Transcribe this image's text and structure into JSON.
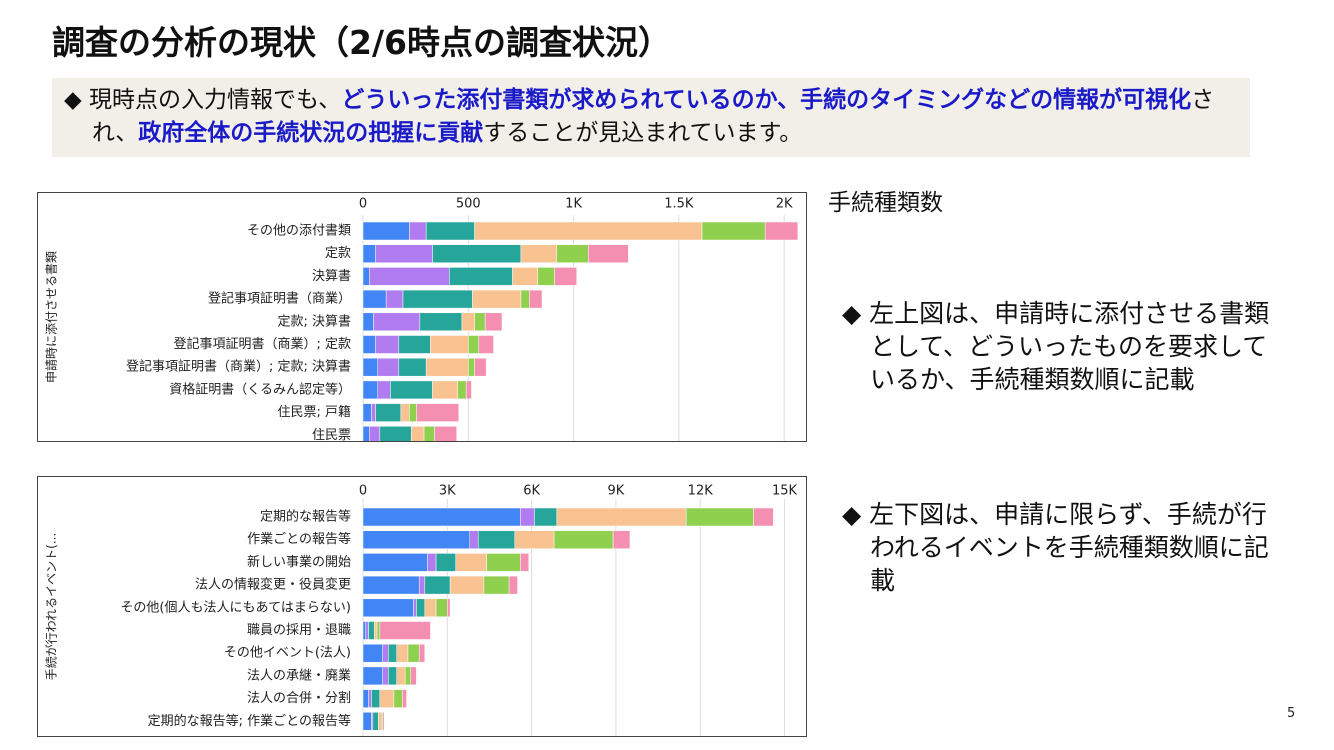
{
  "slide": {
    "title": "調査の分析の現状（2/6時点の調査状況）",
    "summary": [
      {
        "text": "◆ 現時点の入力情報でも、",
        "emphasis": false
      },
      {
        "text": "どういった添付書類が求められているのか、手続のタイミングなどの情報が可視化",
        "emphasis": true
      },
      {
        "text": "され、",
        "emphasis": false
      },
      {
        "text": "政府全体の手続状況の把握に貢献",
        "emphasis": true
      },
      {
        "text": "することが見込まれています。",
        "emphasis": false
      }
    ],
    "count_label": "手続種類数",
    "bullets": [
      "◆ 左上図は、申請時に添付させる書類として、どういったものを要求しているか、手続種類数順に記載",
      "◆ 左下図は、申請に限らず、手続が行われるイベントを手続種類数順に記載"
    ],
    "page_number": "5"
  },
  "chart_data": [
    {
      "type": "stacked-barh",
      "y_label": "申請時に添付させる書類",
      "categories": [
        "その他の添付書類",
        "定款",
        "決算書",
        "登記事項証明書（商業）",
        "定款; 決算書",
        "登記事項証明書（商業）; 定款",
        "登記事項証明書（商業）; 定款; 決算書",
        "資格証明書（くるみん認定等）",
        "住民票; 戸籍",
        "住民票"
      ],
      "series": [
        {
          "color": "#4285f4",
          "values": [
            220,
            60,
            30,
            110,
            50,
            60,
            70,
            70,
            40,
            30
          ]
        },
        {
          "color": "#b07cf0",
          "values": [
            80,
            270,
            380,
            80,
            220,
            110,
            100,
            60,
            20,
            50
          ]
        },
        {
          "color": "#26a69a",
          "values": [
            230,
            420,
            300,
            330,
            200,
            150,
            130,
            200,
            120,
            150
          ]
        },
        {
          "color": "#f8c291",
          "values": [
            1080,
            170,
            120,
            230,
            60,
            180,
            200,
            120,
            40,
            60
          ]
        },
        {
          "color": "#8fd14f",
          "values": [
            300,
            150,
            80,
            40,
            50,
            50,
            30,
            40,
            35,
            50
          ]
        },
        {
          "color": "#f48fb1",
          "values": [
            155,
            190,
            105,
            60,
            80,
            70,
            55,
            25,
            200,
            105
          ]
        }
      ],
      "xlim": [
        0,
        2080
      ],
      "xticks": [
        0,
        500,
        {
          "value": 1000,
          "label": "1K"
        },
        {
          "value": 1500,
          "label": "1.5K"
        },
        {
          "value": 2000,
          "label": "2K"
        }
      ],
      "grid": true
    },
    {
      "type": "stacked-barh",
      "y_label": "手続が行われるイベント(...",
      "categories": [
        "定期的な報告等",
        "作業ごとの報告等",
        "新しい事業の開始",
        "法人の情報変更・役員変更",
        "その他(個人も法人にもあてはまらない)",
        "職員の採用・退職",
        "その他イベント(法人)",
        "法人の承継・廃業",
        "法人の合併・分割",
        "定期的な報告等; 作業ごとの報告等"
      ],
      "series": [
        {
          "color": "#4285f4",
          "values": [
            5600,
            3800,
            2300,
            2000,
            1800,
            100,
            700,
            700,
            200,
            300
          ]
        },
        {
          "color": "#b07cf0",
          "values": [
            500,
            300,
            300,
            200,
            100,
            100,
            200,
            200,
            100,
            50
          ]
        },
        {
          "color": "#26a69a",
          "values": [
            800,
            1300,
            700,
            900,
            300,
            200,
            300,
            300,
            300,
            200
          ]
        },
        {
          "color": "#f8c291",
          "values": [
            4600,
            1400,
            1100,
            1200,
            400,
            100,
            400,
            300,
            500,
            100
          ]
        },
        {
          "color": "#8fd14f",
          "values": [
            2400,
            2100,
            1200,
            900,
            400,
            100,
            400,
            200,
            300,
            50
          ]
        },
        {
          "color": "#f48fb1",
          "values": [
            700,
            600,
            300,
            300,
            100,
            1800,
            200,
            200,
            150,
            50
          ]
        }
      ],
      "xlim": [
        0,
        15800
      ],
      "xticks": [
        0,
        {
          "value": 3000,
          "label": "3K"
        },
        {
          "value": 6000,
          "label": "6K"
        },
        {
          "value": 9000,
          "label": "9K"
        },
        {
          "value": 12000,
          "label": "12K"
        },
        {
          "value": 15000,
          "label": "15K"
        }
      ],
      "grid": true
    }
  ]
}
